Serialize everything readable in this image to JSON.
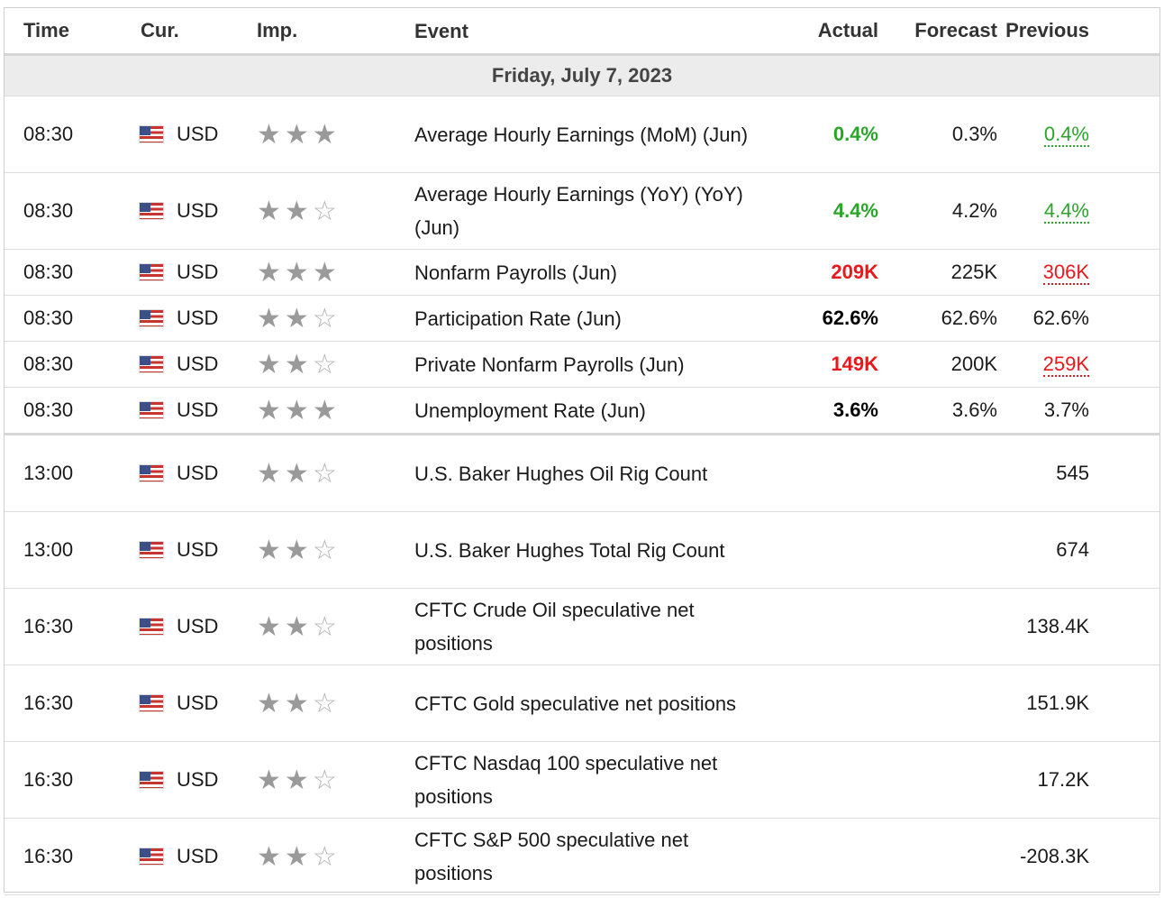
{
  "headers": {
    "time": "Time",
    "cur": "Cur.",
    "imp": "Imp.",
    "event": "Event",
    "actual": "Actual",
    "forecast": "Forecast",
    "previous": "Previous"
  },
  "date_label": "Friday, July 7, 2023",
  "colors": {
    "green": "#2aa52a",
    "red": "#e8191c"
  },
  "rows": [
    {
      "time": "08:30",
      "cur": "USD",
      "stars": 3,
      "event": "Average Hourly Earnings (MoM) (Jun)",
      "actual": "0.4%",
      "actual_style": "green",
      "forecast": "0.3%",
      "previous": "0.4%",
      "previous_style": "green"
    },
    {
      "time": "08:30",
      "cur": "USD",
      "stars": 2,
      "event": "Average Hourly Earnings (YoY) (YoY) (Jun)",
      "actual": "4.4%",
      "actual_style": "green",
      "forecast": "4.2%",
      "previous": "4.4%",
      "previous_style": "green"
    },
    {
      "time": "08:30",
      "cur": "USD",
      "stars": 3,
      "event": "Nonfarm Payrolls (Jun)",
      "actual": "209K",
      "actual_style": "red",
      "forecast": "225K",
      "previous": "306K",
      "previous_style": "red"
    },
    {
      "time": "08:30",
      "cur": "USD",
      "stars": 2,
      "event": "Participation Rate (Jun)",
      "actual": "62.6%",
      "actual_style": "bold",
      "forecast": "62.6%",
      "previous": "62.6%",
      "previous_style": "plain"
    },
    {
      "time": "08:30",
      "cur": "USD",
      "stars": 2,
      "event": "Private Nonfarm Payrolls (Jun)",
      "actual": "149K",
      "actual_style": "red",
      "forecast": "200K",
      "previous": "259K",
      "previous_style": "red"
    },
    {
      "time": "08:30",
      "cur": "USD",
      "stars": 3,
      "event": "Unemployment Rate (Jun)",
      "actual": "3.6%",
      "actual_style": "bold",
      "forecast": "3.6%",
      "previous": "3.7%",
      "previous_style": "plain"
    },
    {
      "time": "13:00",
      "cur": "USD",
      "stars": 2,
      "event": "U.S. Baker Hughes Oil Rig Count",
      "actual": "",
      "actual_style": "plain",
      "forecast": "",
      "previous": "545",
      "previous_style": "plain"
    },
    {
      "time": "13:00",
      "cur": "USD",
      "stars": 2,
      "event": "U.S. Baker Hughes Total Rig Count",
      "actual": "",
      "actual_style": "plain",
      "forecast": "",
      "previous": "674",
      "previous_style": "plain"
    },
    {
      "time": "16:30",
      "cur": "USD",
      "stars": 2,
      "event": "CFTC Crude Oil speculative net positions",
      "actual": "",
      "actual_style": "plain",
      "forecast": "",
      "previous": "138.4K",
      "previous_style": "plain"
    },
    {
      "time": "16:30",
      "cur": "USD",
      "stars": 2,
      "event": "CFTC Gold speculative net positions",
      "actual": "",
      "actual_style": "plain",
      "forecast": "",
      "previous": "151.9K",
      "previous_style": "plain"
    },
    {
      "time": "16:30",
      "cur": "USD",
      "stars": 2,
      "event": "CFTC Nasdaq 100 speculative net positions",
      "actual": "",
      "actual_style": "plain",
      "forecast": "",
      "previous": "17.2K",
      "previous_style": "plain"
    },
    {
      "time": "16:30",
      "cur": "USD",
      "stars": 2,
      "event": "CFTC S&P 500 speculative net positions",
      "actual": "",
      "actual_style": "plain",
      "forecast": "",
      "previous": "-208.3K",
      "previous_style": "plain"
    }
  ]
}
